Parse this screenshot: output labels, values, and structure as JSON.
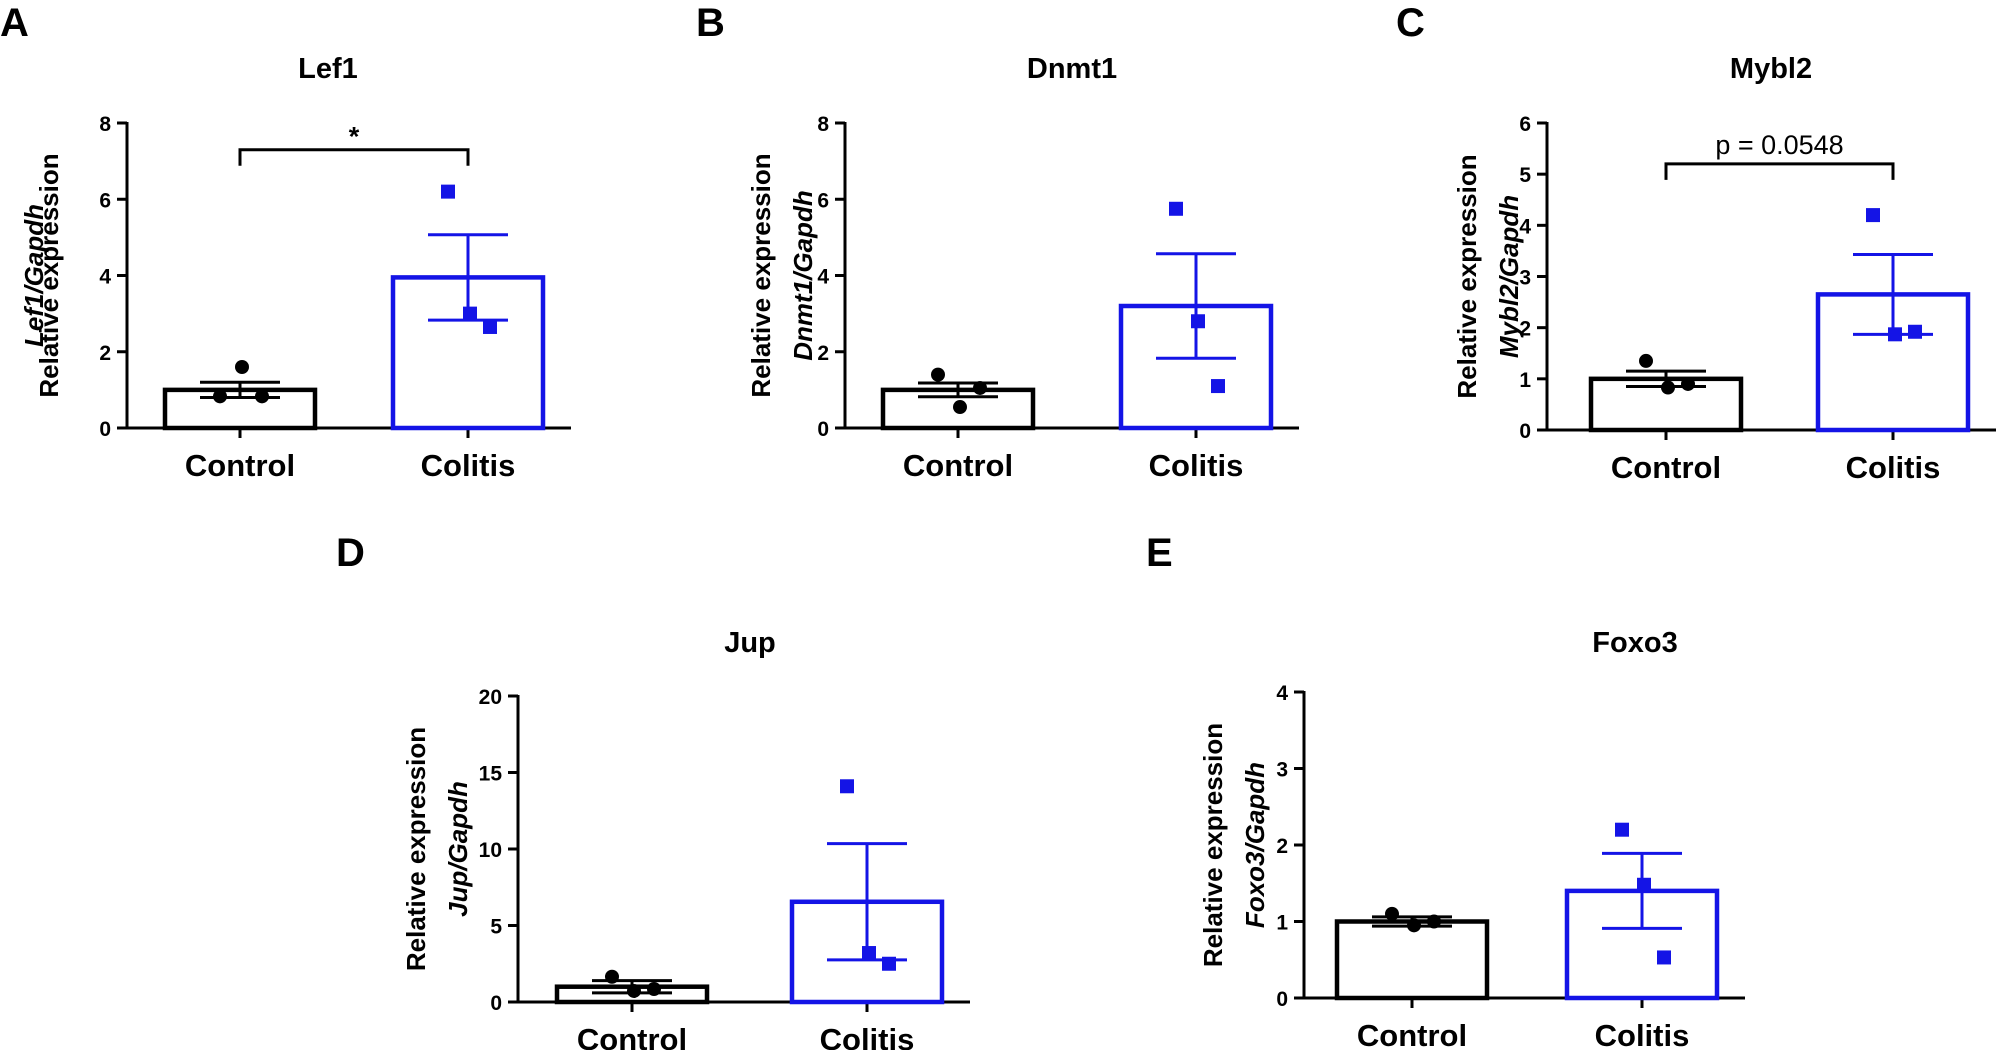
{
  "figure": {
    "colors": {
      "control": "#000000",
      "colitis": "#1414e6",
      "axis": "#000000"
    }
  },
  "chart_data": [
    {
      "panel": "A",
      "type": "bar",
      "title": "Lef1",
      "ylabel_line1": "Relative expression",
      "ylabel_line2": "Lef1/Gapdh",
      "categories": [
        "Control",
        "Colitis"
      ],
      "ylim": [
        0,
        8
      ],
      "yticks": [
        "0",
        "2",
        "4",
        "6",
        "8"
      ],
      "series": [
        {
          "name": "Control",
          "mean": 1.0,
          "sem": 0.2,
          "points": [
            0.83,
            1.6,
            0.83
          ],
          "marker": "circle"
        },
        {
          "name": "Colitis",
          "mean": 3.95,
          "sem": 1.12,
          "points": [
            6.2,
            3.0,
            2.65
          ],
          "marker": "square"
        }
      ],
      "annotation": {
        "text": "*",
        "level": 7.3
      }
    },
    {
      "panel": "B",
      "type": "bar",
      "title": "Dnmt1",
      "ylabel_line1": "Relative expression",
      "ylabel_line2": "Dnmt1/Gapdh",
      "categories": [
        "Control",
        "Colitis"
      ],
      "ylim": [
        0,
        8
      ],
      "yticks": [
        "0",
        "2",
        "4",
        "6",
        "8"
      ],
      "series": [
        {
          "name": "Control",
          "mean": 1.0,
          "sem": 0.18,
          "points": [
            1.4,
            0.55,
            1.05
          ],
          "marker": "circle"
        },
        {
          "name": "Colitis",
          "mean": 3.2,
          "sem": 1.37,
          "points": [
            5.75,
            2.8,
            1.1
          ],
          "marker": "square"
        }
      ]
    },
    {
      "panel": "C",
      "type": "bar",
      "title": "Mybl2",
      "ylabel_line1": "Relative expression",
      "ylabel_line2": "Mybl2/Gapdh",
      "categories": [
        "Control",
        "Colitis"
      ],
      "ylim": [
        0,
        6
      ],
      "yticks": [
        "0",
        "1",
        "2",
        "3",
        "4",
        "5",
        "6"
      ],
      "series": [
        {
          "name": "Control",
          "mean": 1.0,
          "sem": 0.15,
          "points": [
            1.35,
            0.83,
            0.9
          ],
          "marker": "circle"
        },
        {
          "name": "Colitis",
          "mean": 2.65,
          "sem": 0.78,
          "points": [
            4.2,
            1.87,
            1.92
          ],
          "marker": "square"
        }
      ],
      "annotation": {
        "text": "p = 0.0548",
        "level": 5.2
      }
    },
    {
      "panel": "D",
      "type": "bar",
      "title": "Jup",
      "ylabel_line1": "Relative expression",
      "ylabel_line2": "Jup/Gapdh",
      "categories": [
        "Control",
        "Colitis"
      ],
      "ylim": [
        0,
        20
      ],
      "yticks": [
        "0",
        "5",
        "10",
        "15",
        "20"
      ],
      "series": [
        {
          "name": "Control",
          "mean": 1.0,
          "sem": 0.4,
          "points": [
            1.65,
            0.72,
            0.85
          ],
          "marker": "circle"
        },
        {
          "name": "Colitis",
          "mean": 6.55,
          "sem": 3.8,
          "points": [
            14.1,
            3.2,
            2.5
          ],
          "marker": "square"
        }
      ]
    },
    {
      "panel": "E",
      "type": "bar",
      "title": "Foxo3",
      "ylabel_line1": "Relative expression",
      "ylabel_line2": "Foxo3/Gapdh",
      "categories": [
        "Control",
        "Colitis"
      ],
      "ylim": [
        0,
        4
      ],
      "yticks": [
        "0",
        "1",
        "2",
        "3",
        "4"
      ],
      "series": [
        {
          "name": "Control",
          "mean": 1.0,
          "sem": 0.06,
          "points": [
            1.1,
            0.95,
            1.0
          ],
          "marker": "circle"
        },
        {
          "name": "Colitis",
          "mean": 1.4,
          "sem": 0.49,
          "points": [
            2.2,
            1.48,
            0.53
          ],
          "marker": "square"
        }
      ]
    }
  ]
}
